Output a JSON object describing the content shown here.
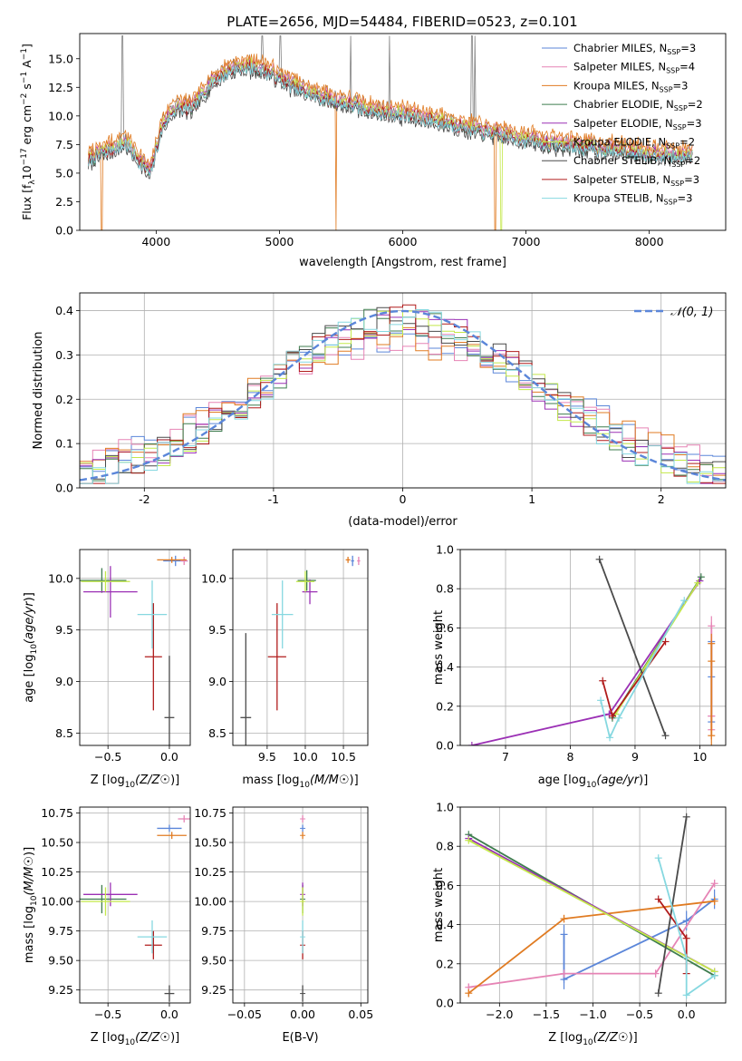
{
  "title": "PLATE=2656, MJD=54484, FIBERID=0523, z=0.101",
  "colors": {
    "chabrier_miles": "#5b86d9",
    "salpeter_miles": "#e684b5",
    "kroupa_miles": "#e07b22",
    "chabrier_elodie": "#3f7d4f",
    "salpeter_elodie": "#9b30b5",
    "kroupa_elodie": "#c4e84a",
    "chabrier_stelib": "#4a4a4a",
    "salpeter_stelib": "#b01c1c",
    "kroupa_stelib": "#86d8e0",
    "data_grey": "#808080",
    "normal_curve": "#5b86d9",
    "grid": "#b0b0b0"
  },
  "legend_spectrum": [
    {
      "label": "Chabrier MILES, N",
      "sub": "SSP",
      "suffix": "=3",
      "color": "#5b86d9"
    },
    {
      "label": "Salpeter MILES, N",
      "sub": "SSP",
      "suffix": "=4",
      "color": "#e684b5"
    },
    {
      "label": "Kroupa MILES, N",
      "sub": "SSP",
      "suffix": "=3",
      "color": "#e07b22"
    },
    {
      "label": "Chabrier ELODIE, N",
      "sub": "SSP",
      "suffix": "=2",
      "color": "#3f7d4f"
    },
    {
      "label": "Salpeter ELODIE, N",
      "sub": "SSP",
      "suffix": "=3",
      "color": "#9b30b5"
    },
    {
      "label": "Kroupa ELODIE, N",
      "sub": "SSP",
      "suffix": "=2",
      "color": "#c4e84a"
    },
    {
      "label": "Chabrier STELIB, N",
      "sub": "SSP",
      "suffix": "=2",
      "color": "#4a4a4a"
    },
    {
      "label": "Salpeter STELIB, N",
      "sub": "SSP",
      "suffix": "=3",
      "color": "#b01c1c"
    },
    {
      "label": "Kroupa STELIB, N",
      "sub": "SSP",
      "suffix": "=3",
      "color": "#86d8e0"
    }
  ],
  "legend_hist": {
    "label": "𝒩(0, 1)"
  },
  "chart_data": [
    {
      "id": "spectrum",
      "type": "line",
      "xlabel": "wavelength [Angstrom, rest frame]",
      "ylabel": "Flux [f",
      "xlim": [
        3380,
        8620
      ],
      "ylim": [
        0,
        17.2
      ],
      "xticks": [
        4000,
        5000,
        6000,
        7000,
        8000
      ],
      "yticks": [
        0.0,
        2.5,
        5.0,
        7.5,
        10.0,
        12.5,
        15.0
      ],
      "ytick_labels": [
        "0.0",
        "2.5",
        "5.0",
        "7.5",
        "10.0",
        "12.5",
        "15.0"
      ],
      "grid": false,
      "legend": "top-right",
      "x_range": [
        3450,
        8350
      ],
      "data_profile": {
        "x": [
          3450,
          3550,
          3650,
          3750,
          3850,
          3950,
          4050,
          4150,
          4300,
          4450,
          4600,
          4750,
          4900,
          5050,
          5200,
          5400,
          5600,
          5800,
          6000,
          6200,
          6400,
          6600,
          6800,
          7000,
          7200,
          7400,
          7600,
          7800,
          8000,
          8200,
          8350
        ],
        "y": [
          6.0,
          6.6,
          7.0,
          7.6,
          6.2,
          4.8,
          9.0,
          10.5,
          10.6,
          12.8,
          13.9,
          14.2,
          13.8,
          12.8,
          12.0,
          11.3,
          10.8,
          10.2,
          10.0,
          9.6,
          9.2,
          8.6,
          8.2,
          7.8,
          7.4,
          7.2,
          7.0,
          6.8,
          6.6,
          6.4,
          6.3
        ]
      },
      "series_offsets": [
        0.1,
        0.5,
        0.9,
        0.0,
        0.2,
        0.3,
        -0.3,
        0.1,
        0.0
      ]
    },
    {
      "id": "residual_hist",
      "type": "line",
      "xlabel": "(data-model)/error",
      "ylabel": "Normed distribution",
      "xlim": [
        -2.5,
        2.5
      ],
      "ylim": [
        0,
        0.44
      ],
      "xticks": [
        -2,
        -1,
        0,
        1,
        2
      ],
      "yticks": [
        0.0,
        0.1,
        0.2,
        0.3,
        0.4
      ],
      "ytick_labels": [
        "0.0",
        "0.1",
        "0.2",
        "0.3",
        "0.4"
      ],
      "grid": true,
      "legend": "top-right",
      "normal": {
        "mu": 0,
        "sigma": 1
      },
      "bin_width": 0.1
    },
    {
      "id": "age_vs_Z",
      "type": "scatter",
      "xlabel": "Z [log",
      "ylabel": "age  [log",
      "xlim": [
        -0.73,
        0.17
      ],
      "ylim": [
        8.38,
        10.28
      ],
      "xticks": [
        -0.5,
        0.0
      ],
      "xtick_labels": [
        "−0.5",
        "0.0"
      ],
      "yticks": [
        8.5,
        9.0,
        9.5,
        10.0
      ],
      "ytick_labels": [
        "8.5",
        "9.0",
        "9.5",
        "10.0"
      ],
      "grid": true,
      "points": [
        {
          "series": "chabrier_miles",
          "x": 0.05,
          "y": 10.17,
          "xerr": 0.1,
          "yerr": 0.05
        },
        {
          "series": "salpeter_miles",
          "x": 0.12,
          "y": 10.17,
          "xerr": 0.03,
          "yerr": 0.04
        },
        {
          "series": "kroupa_miles",
          "x": 0.02,
          "y": 10.18,
          "xerr": 0.12,
          "yerr": 0.03
        },
        {
          "series": "chabrier_elodie",
          "x": -0.55,
          "y": 9.98,
          "xerr": 0.2,
          "yerr": 0.12
        },
        {
          "series": "salpeter_elodie",
          "x": -0.48,
          "y": 9.87,
          "xerr": 0.22,
          "yerr": 0.25
        },
        {
          "series": "kroupa_elodie",
          "x": -0.52,
          "y": 9.97,
          "xerr": 0.2,
          "yerr": 0.1
        },
        {
          "series": "chabrier_stelib",
          "x": 0.0,
          "y": 8.65,
          "xerr": 0.04,
          "yerr": 0.6
        },
        {
          "series": "salpeter_stelib",
          "x": -0.13,
          "y": 9.24,
          "xerr": 0.07,
          "yerr": 0.52
        },
        {
          "series": "kroupa_stelib",
          "x": -0.14,
          "y": 9.65,
          "xerr": 0.12,
          "yerr": 0.33
        }
      ]
    },
    {
      "id": "age_vs_mass",
      "type": "scatter",
      "xlabel": "mass [log",
      "ylabel": "",
      "xlim": [
        9.05,
        10.82
      ],
      "ylim": [
        8.38,
        10.28
      ],
      "xticks": [
        9.5,
        10.0,
        10.5
      ],
      "xtick_labels": [
        "9.5",
        "10.0",
        "10.5"
      ],
      "yticks": [
        8.5,
        9.0,
        9.5,
        10.0
      ],
      "ytick_labels": [
        "8.5",
        "9.0",
        "9.5",
        "10.0"
      ],
      "grid": true,
      "points": [
        {
          "series": "chabrier_miles",
          "x": 10.62,
          "y": 10.17,
          "xerr": 0.02,
          "yerr": 0.05
        },
        {
          "series": "salpeter_miles",
          "x": 10.7,
          "y": 10.17,
          "xerr": 0.02,
          "yerr": 0.04
        },
        {
          "series": "kroupa_miles",
          "x": 10.56,
          "y": 10.18,
          "xerr": 0.03,
          "yerr": 0.03
        },
        {
          "series": "chabrier_elodie",
          "x": 10.02,
          "y": 9.98,
          "xerr": 0.12,
          "yerr": 0.1
        },
        {
          "series": "salpeter_elodie",
          "x": 10.06,
          "y": 9.87,
          "xerr": 0.1,
          "yerr": 0.12
        },
        {
          "series": "kroupa_elodie",
          "x": 10.0,
          "y": 9.97,
          "xerr": 0.12,
          "yerr": 0.1
        },
        {
          "series": "chabrier_stelib",
          "x": 9.22,
          "y": 8.65,
          "xerr": 0.07,
          "yerr": 0.82
        },
        {
          "series": "salpeter_stelib",
          "x": 9.63,
          "y": 9.24,
          "xerr": 0.12,
          "yerr": 0.52
        },
        {
          "series": "kroupa_stelib",
          "x": 9.7,
          "y": 9.65,
          "xerr": 0.14,
          "yerr": 0.33
        }
      ]
    },
    {
      "id": "weight_vs_age",
      "type": "line",
      "xlabel": "age  [log",
      "ylabel": "mass weight",
      "xlim": [
        6.3,
        10.4
      ],
      "ylim": [
        0,
        1.0
      ],
      "xticks": [
        7,
        8,
        9,
        10
      ],
      "xtick_labels": [
        "7",
        "8",
        "9",
        "10"
      ],
      "yticks": [
        0.0,
        0.2,
        0.4,
        0.6,
        0.8,
        1.0
      ],
      "ytick_labels": [
        "0.0",
        "0.2",
        "0.4",
        "0.6",
        "0.8",
        "1.0"
      ],
      "grid": true,
      "series": [
        {
          "key": "chabrier_miles",
          "x": [
            10.18,
            10.18,
            10.18
          ],
          "y": [
            0.12,
            0.35,
            0.53
          ],
          "err": [
            0.05,
            0.05,
            0.05
          ]
        },
        {
          "key": "salpeter_miles",
          "x": [
            10.18,
            10.18,
            10.18,
            10.18
          ],
          "y": [
            0.08,
            0.15,
            0.15,
            0.61
          ],
          "err": [
            0.05,
            0.05,
            0.05,
            0.05
          ]
        },
        {
          "key": "kroupa_miles",
          "x": [
            10.18,
            10.18,
            10.18
          ],
          "y": [
            0.05,
            0.43,
            0.52
          ],
          "err": [
            0.05,
            0.05,
            0.05
          ]
        },
        {
          "key": "chabrier_elodie",
          "x": [
            8.65,
            10.02
          ],
          "y": [
            0.14,
            0.86
          ],
          "err": [
            0.0,
            0.0
          ]
        },
        {
          "key": "salpeter_elodie",
          "x": [
            6.48,
            8.6,
            10.0
          ],
          "y": [
            0.0,
            0.16,
            0.84
          ],
          "err": [
            0.0,
            0.0,
            0.0
          ]
        },
        {
          "key": "kroupa_elodie",
          "x": [
            8.7,
            9.97
          ],
          "y": [
            0.16,
            0.83
          ],
          "err": [
            0.0,
            0.0
          ]
        },
        {
          "key": "chabrier_stelib",
          "x": [
            8.45,
            9.47
          ],
          "y": [
            0.95,
            0.05
          ],
          "err": [
            0.0,
            0.0
          ]
        },
        {
          "key": "salpeter_stelib",
          "x": [
            8.5,
            8.65,
            9.47
          ],
          "y": [
            0.33,
            0.15,
            0.53
          ],
          "err": [
            0.0,
            0.0,
            0.0
          ]
        },
        {
          "key": "kroupa_stelib",
          "x": [
            8.47,
            8.61,
            8.75,
            9.76
          ],
          "y": [
            0.23,
            0.04,
            0.14,
            0.74
          ],
          "err": [
            0.0,
            0.0,
            0.0,
            0.0
          ]
        }
      ]
    },
    {
      "id": "mass_vs_Z",
      "type": "scatter",
      "xlabel": "Z [log",
      "ylabel": "mass [log",
      "xlim": [
        -0.73,
        0.17
      ],
      "ylim": [
        9.14,
        10.8
      ],
      "xticks": [
        -0.5,
        0.0
      ],
      "xtick_labels": [
        "−0.5",
        "0.0"
      ],
      "yticks": [
        9.25,
        9.5,
        9.75,
        10.0,
        10.25,
        10.5,
        10.75
      ],
      "ytick_labels": [
        "9.25",
        "9.50",
        "9.75",
        "10.00",
        "10.25",
        "10.50",
        "10.75"
      ],
      "grid": true,
      "points": [
        {
          "series": "chabrier_miles",
          "x": 0.0,
          "y": 10.62,
          "xerr": 0.1,
          "yerr": 0.03
        },
        {
          "series": "salpeter_miles",
          "x": 0.12,
          "y": 10.7,
          "xerr": 0.05,
          "yerr": 0.03
        },
        {
          "series": "kroupa_miles",
          "x": 0.02,
          "y": 10.56,
          "xerr": 0.12,
          "yerr": 0.03
        },
        {
          "series": "chabrier_elodie",
          "x": -0.55,
          "y": 10.02,
          "xerr": 0.2,
          "yerr": 0.12
        },
        {
          "series": "salpeter_elodie",
          "x": -0.48,
          "y": 10.06,
          "xerr": 0.22,
          "yerr": 0.1
        },
        {
          "series": "kroupa_elodie",
          "x": -0.52,
          "y": 10.0,
          "xerr": 0.2,
          "yerr": 0.12
        },
        {
          "series": "chabrier_stelib",
          "x": 0.0,
          "y": 9.22,
          "xerr": 0.04,
          "yerr": 0.07
        },
        {
          "series": "salpeter_stelib",
          "x": -0.13,
          "y": 9.63,
          "xerr": 0.07,
          "yerr": 0.12
        },
        {
          "series": "kroupa_stelib",
          "x": -0.14,
          "y": 9.7,
          "xerr": 0.12,
          "yerr": 0.14
        }
      ]
    },
    {
      "id": "mass_vs_ebv",
      "type": "scatter",
      "xlabel": "E(B-V)",
      "ylabel": "",
      "xlim": [
        -0.06,
        0.056
      ],
      "ylim": [
        9.14,
        10.8
      ],
      "xticks": [
        -0.05,
        0.0,
        0.05
      ],
      "xtick_labels": [
        "−0.05",
        "0.00",
        "0.05"
      ],
      "yticks": [
        9.25,
        9.5,
        9.75,
        10.0,
        10.25,
        10.5,
        10.75
      ],
      "ytick_labels": [
        "9.25",
        "9.50",
        "9.75",
        "10.00",
        "10.25",
        "10.50",
        "10.75"
      ],
      "grid": true,
      "points": [
        {
          "series": "chabrier_miles",
          "x": 0.0,
          "y": 10.62,
          "xerr": 0.0,
          "yerr": 0.03
        },
        {
          "series": "salpeter_miles",
          "x": 0.0,
          "y": 10.7,
          "xerr": 0.0,
          "yerr": 0.03
        },
        {
          "series": "kroupa_miles",
          "x": 0.0,
          "y": 10.56,
          "xerr": 0.0,
          "yerr": 0.03
        },
        {
          "series": "chabrier_elodie",
          "x": 0.0,
          "y": 10.02,
          "xerr": 0.0,
          "yerr": 0.12
        },
        {
          "series": "salpeter_elodie",
          "x": 0.0,
          "y": 10.06,
          "xerr": 0.0,
          "yerr": 0.1
        },
        {
          "series": "kroupa_elodie",
          "x": 0.0,
          "y": 10.0,
          "xerr": 0.0,
          "yerr": 0.12
        },
        {
          "series": "chabrier_stelib",
          "x": 0.0,
          "y": 9.22,
          "xerr": 0.0,
          "yerr": 0.07
        },
        {
          "series": "salpeter_stelib",
          "x": 0.0,
          "y": 9.63,
          "xerr": 0.0,
          "yerr": 0.12
        },
        {
          "series": "kroupa_stelib",
          "x": 0.0,
          "y": 9.7,
          "xerr": 0.0,
          "yerr": 0.14
        }
      ]
    },
    {
      "id": "weight_vs_Z",
      "type": "line",
      "xlabel": "Z [log",
      "ylabel": "mass weight",
      "xlim": [
        -2.42,
        0.42
      ],
      "ylim": [
        0,
        1.0
      ],
      "xticks": [
        -2.0,
        -1.5,
        -1.0,
        -0.5,
        0.0
      ],
      "xtick_labels": [
        "−2.0",
        "−1.5",
        "−1.0",
        "−0.5",
        "0.0"
      ],
      "yticks": [
        0.0,
        0.2,
        0.4,
        0.6,
        0.8,
        1.0
      ],
      "ytick_labels": [
        "0.0",
        "0.2",
        "0.4",
        "0.6",
        "0.8",
        "1.0"
      ],
      "grid": true,
      "series": [
        {
          "key": "chabrier_miles",
          "x": [
            -1.31,
            -1.31,
            0.0,
            0.3
          ],
          "y": [
            0.35,
            0.12,
            0.42,
            0.53
          ],
          "err": [
            0.05,
            0.05,
            0.05,
            0.05
          ]
        },
        {
          "key": "salpeter_miles",
          "x": [
            -2.33,
            -1.31,
            -0.33,
            0.3
          ],
          "y": [
            0.08,
            0.15,
            0.15,
            0.61
          ],
          "err": [
            0.02,
            0.02,
            0.02,
            0.02
          ]
        },
        {
          "key": "kroupa_miles",
          "x": [
            -2.33,
            -1.31,
            0.3
          ],
          "y": [
            0.05,
            0.43,
            0.52
          ],
          "err": [
            0.02,
            0.02,
            0.02
          ]
        },
        {
          "key": "chabrier_elodie",
          "x": [
            -2.33,
            0.3
          ],
          "y": [
            0.86,
            0.14
          ],
          "err": [
            0.0,
            0.0
          ]
        },
        {
          "key": "salpeter_elodie",
          "x": [
            -2.33,
            0.3
          ],
          "y": [
            0.84,
            0.16
          ],
          "err": [
            0.0,
            0.0
          ]
        },
        {
          "key": "kroupa_elodie",
          "x": [
            -2.33,
            0.3
          ],
          "y": [
            0.83,
            0.16
          ],
          "err": [
            0.0,
            0.0
          ]
        },
        {
          "key": "chabrier_stelib",
          "x": [
            -0.3,
            0.0
          ],
          "y": [
            0.05,
            0.95
          ],
          "err": [
            0.0,
            0.0
          ]
        },
        {
          "key": "salpeter_stelib",
          "x": [
            -0.3,
            0.0,
            0.0
          ],
          "y": [
            0.53,
            0.33,
            0.15
          ],
          "err": [
            0.0,
            0.02,
            0.0
          ]
        },
        {
          "key": "kroupa_stelib",
          "x": [
            -0.3,
            0.0,
            0.0,
            0.3
          ],
          "y": [
            0.74,
            0.23,
            0.04,
            0.14
          ],
          "err": [
            0.0,
            0.0,
            0.0,
            0.0
          ]
        }
      ]
    }
  ]
}
